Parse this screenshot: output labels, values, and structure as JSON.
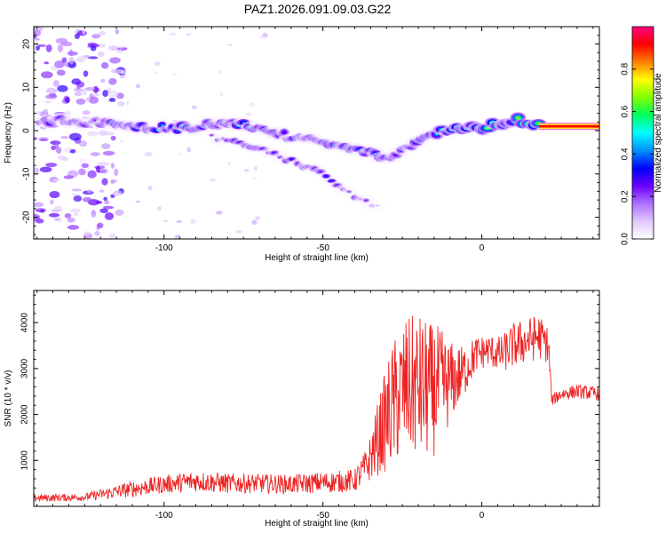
{
  "title": "PAZ1.2026.091.09.03.G22",
  "chart_data": [
    {
      "type": "heatmap",
      "name": "spectrogram",
      "xlabel": "Height of straight line (km)",
      "ylabel": "Frequency (Hz)",
      "xlim": [
        -141,
        37
      ],
      "ylim": [
        -25,
        24
      ],
      "xticks": [
        -100,
        -50,
        0
      ],
      "yticks": [
        -20,
        -10,
        0,
        10,
        20
      ],
      "colorbar": {
        "label": "Normalized spectral amplitude",
        "range": [
          0,
          1
        ],
        "ticks": [
          "0.0",
          "0.2",
          "0.4",
          "0.6",
          "0.8"
        ],
        "tick_values": [
          0,
          0.2,
          0.4,
          0.6,
          0.8
        ],
        "colors": [
          "#ffffff",
          "#e0c8ff",
          "#b070ff",
          "#6a00ff",
          "#0000ff",
          "#0090ff",
          "#00ffff",
          "#00ff60",
          "#80ff00",
          "#ffff00",
          "#ff8000",
          "#ff0000",
          "#ff0080"
        ]
      },
      "main_track": [
        {
          "x": -139,
          "f": 2.5,
          "a": 0.35
        },
        {
          "x": -125,
          "f": 2.0,
          "a": 0.3
        },
        {
          "x": -110,
          "f": 1.0,
          "a": 0.4
        },
        {
          "x": -95,
          "f": 0.5,
          "a": 0.45
        },
        {
          "x": -80,
          "f": 2.0,
          "a": 0.4
        },
        {
          "x": -70,
          "f": 0.5,
          "a": 0.4
        },
        {
          "x": -60,
          "f": -1.5,
          "a": 0.35
        },
        {
          "x": -50,
          "f": -3.0,
          "a": 0.35
        },
        {
          "x": -40,
          "f": -4.5,
          "a": 0.4
        },
        {
          "x": -30,
          "f": -6.0,
          "a": 0.35
        },
        {
          "x": -22,
          "f": -4.0,
          "a": 0.3
        },
        {
          "x": -18,
          "f": -1.5,
          "a": 0.35
        },
        {
          "x": -10,
          "f": 0.5,
          "a": 0.55
        },
        {
          "x": 0,
          "f": 0.5,
          "a": 0.75
        },
        {
          "x": 10,
          "f": 2.5,
          "a": 0.65
        },
        {
          "x": 20,
          "f": 1.0,
          "a": 0.9
        },
        {
          "x": 37,
          "f": 1.0,
          "a": 0.9
        }
      ],
      "secondary_track": [
        {
          "x": -85,
          "f": -1.5,
          "a": 0.3
        },
        {
          "x": -70,
          "f": -4.0,
          "a": 0.3
        },
        {
          "x": -60,
          "f": -7.0,
          "a": 0.3
        },
        {
          "x": -50,
          "f": -10.0,
          "a": 0.35
        },
        {
          "x": -40,
          "f": -15.0,
          "a": 0.25
        },
        {
          "x": -32,
          "f": -18.0,
          "a": 0.15
        }
      ]
    },
    {
      "type": "line",
      "name": "snr",
      "xlabel": "Height of straight line (km)",
      "ylabel": "SNR (10 * v/v)",
      "xlim": [
        -141,
        37
      ],
      "ylim": [
        0,
        4700
      ],
      "xticks": [
        -100,
        -50,
        0
      ],
      "yticks": [
        1000,
        2000,
        3000,
        4000
      ],
      "color": "#ee2222",
      "series": {
        "x": [
          -141,
          -125,
          -110,
          -100,
          -90,
          -80,
          -70,
          -60,
          -50,
          -40,
          -36,
          -32,
          -28,
          -24,
          -20,
          -16,
          -13,
          -10,
          -6,
          -2,
          2,
          6,
          10,
          14,
          18,
          21,
          22,
          25,
          30,
          37
        ],
        "y": [
          180,
          200,
          380,
          480,
          550,
          500,
          500,
          480,
          520,
          560,
          900,
          1600,
          2200,
          2600,
          2600,
          2500,
          2600,
          2700,
          2900,
          3300,
          3400,
          3300,
          3500,
          3600,
          3700,
          3500,
          2300,
          2450,
          2500,
          2450
        ],
        "noise": [
          80,
          80,
          180,
          200,
          230,
          220,
          210,
          210,
          230,
          250,
          400,
          900,
          1400,
          1500,
          1600,
          1500,
          1300,
          900,
          600,
          400,
          350,
          400,
          500,
          500,
          500,
          400,
          120,
          150,
          150,
          150
        ]
      }
    }
  ]
}
